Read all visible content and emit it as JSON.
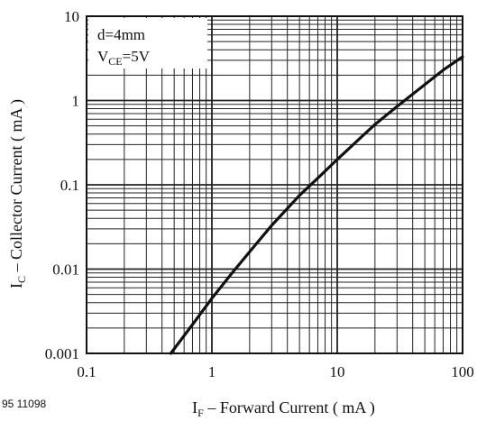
{
  "chart_data": {
    "type": "line",
    "x_scale": "log",
    "y_scale": "log",
    "xlim": [
      0.1,
      100
    ],
    "ylim": [
      0.001,
      10
    ],
    "grid": true,
    "x_ticks": [
      "0.1",
      "1",
      "10",
      "100"
    ],
    "y_ticks": [
      "0.001",
      "0.01",
      "0.1",
      "1",
      "10"
    ],
    "xlabel": {
      "main": "I",
      "sub": "F",
      "rest": " – Forward Current ( mA )"
    },
    "ylabel": {
      "main": "I",
      "sub": "C",
      "rest": " – Collector Current ( mA )"
    },
    "annotation": {
      "line1": "d=4mm",
      "line2_main": "V",
      "line2_sub": "CE",
      "line2_rest": "=5V"
    },
    "figure_id": "95 11098",
    "series": [
      {
        "x": [
          0.47,
          0.7,
          1.0,
          1.5,
          2.0,
          3.0,
          5.0,
          7.0,
          10.0,
          15.0,
          20.0,
          30.0,
          50.0,
          70.0,
          100.0
        ],
        "y": [
          0.001,
          0.0022,
          0.0045,
          0.0096,
          0.016,
          0.033,
          0.075,
          0.12,
          0.2,
          0.35,
          0.52,
          0.85,
          1.55,
          2.3,
          3.3
        ]
      }
    ]
  }
}
